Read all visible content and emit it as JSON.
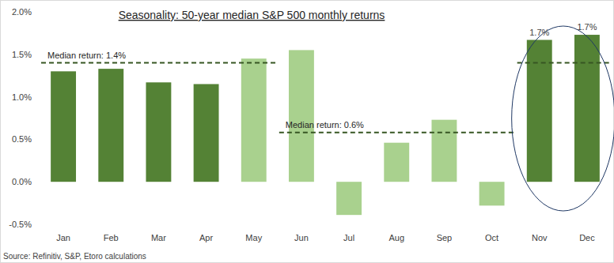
{
  "chart_data": {
    "type": "bar",
    "title": "Seasonality: 50-year median S&P 500 monthly returns",
    "source": "Source: Refinitiv, S&P, Etoro calculations",
    "categories": [
      "Jan",
      "Feb",
      "Mar",
      "Apr",
      "May",
      "Jun",
      "Jul",
      "Aug",
      "Sep",
      "Oct",
      "Nov",
      "Dec"
    ],
    "values": [
      1.3,
      1.33,
      1.17,
      1.15,
      1.45,
      1.55,
      -0.39,
      0.46,
      0.73,
      -0.28,
      1.67,
      1.73
    ],
    "value_labels": [
      null,
      null,
      null,
      null,
      null,
      null,
      null,
      null,
      null,
      null,
      "1.7%",
      "1.7%"
    ],
    "colors": [
      "#548235",
      "#548235",
      "#548235",
      "#548235",
      "#a9d18e",
      "#a9d18e",
      "#a9d18e",
      "#a9d18e",
      "#a9d18e",
      "#a9d18e",
      "#548235",
      "#548235"
    ],
    "data_labels": true,
    "grid": false,
    "ylim": [
      -0.5,
      2.0
    ],
    "yticks": [
      {
        "value": -0.5,
        "label": "-0.5%"
      },
      {
        "value": 0,
        "label": "0.0%"
      },
      {
        "value": 0.5,
        "label": "0.5%"
      },
      {
        "value": 1.0,
        "label": "1.0%"
      },
      {
        "value": 1.5,
        "label": "1.5%"
      },
      {
        "value": 2.0,
        "label": "2.0%"
      }
    ],
    "annotations": [
      {
        "text": "Median return: 1.4%",
        "value": 1.4,
        "start": "Jan",
        "end": "May"
      },
      {
        "text": "Median return: 0.6%",
        "value": 0.58,
        "start": "Jun",
        "end": "Oct"
      },
      {
        "value": 1.4,
        "start": "Nov",
        "end": "Dec"
      }
    ]
  }
}
